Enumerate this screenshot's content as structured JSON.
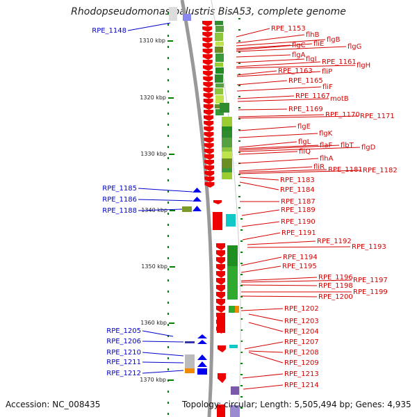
{
  "title": "Rhodopseudomonas palustris BisA53, complete genome",
  "footer": {
    "accession": "Accession: NC_008435",
    "summary": "Topology: circular; Length: 5,505,494 bp; Genes: 4,935"
  },
  "scale_labels": [
    "1310 kbp",
    "1320 kbp",
    "1330 kbp",
    "1340 kbp",
    "1350 kbp",
    "1360 kbp",
    "1370 kbp"
  ],
  "forward_genes": [
    "RPE_1148",
    "RPE_1185",
    "RPE_1186",
    "RPE_1188",
    "RPE_1205",
    "RPE_1206",
    "RPE_1210",
    "RPE_1211",
    "RPE_1212"
  ],
  "reverse_genes": [
    "RPE_1153",
    "flhB",
    "flgB",
    "flgC",
    "fliE",
    "flgG",
    "flgA",
    "flgI",
    "RPE_1161",
    "flgH",
    "RPE_1163",
    "fliP",
    "RPE_1165",
    "fliF",
    "RPE_1167",
    "motB",
    "RPE_1169",
    "RPE_1170",
    "RPE_1171",
    "flgE",
    "flgK",
    "flgL",
    "flaF",
    "flbT",
    "flgD",
    "fliQ",
    "flhA",
    "fliR",
    "RPE_1181",
    "RPE_1182",
    "RPE_1183",
    "RPE_1184",
    "RPE_1187",
    "RPE_1189",
    "RPE_1190",
    "RPE_1191",
    "RPE_1192",
    "RPE_1193",
    "RPE_1194",
    "RPE_1195",
    "RPE_1196",
    "RPE_1197",
    "RPE_1198",
    "RPE_1199",
    "RPE_1200",
    "RPE_1202",
    "RPE_1203",
    "RPE_1204",
    "RPE_1207",
    "RPE_1208",
    "RPE_1209",
    "RPE_1213",
    "RPE_1214"
  ],
  "colors": {
    "reverse_strand": "#ee0000",
    "forward_strand": "#0000ee",
    "forward_label": "#0000cc",
    "reverse_label": "#d40000",
    "tick": "#008000",
    "backbone": "#999999"
  }
}
